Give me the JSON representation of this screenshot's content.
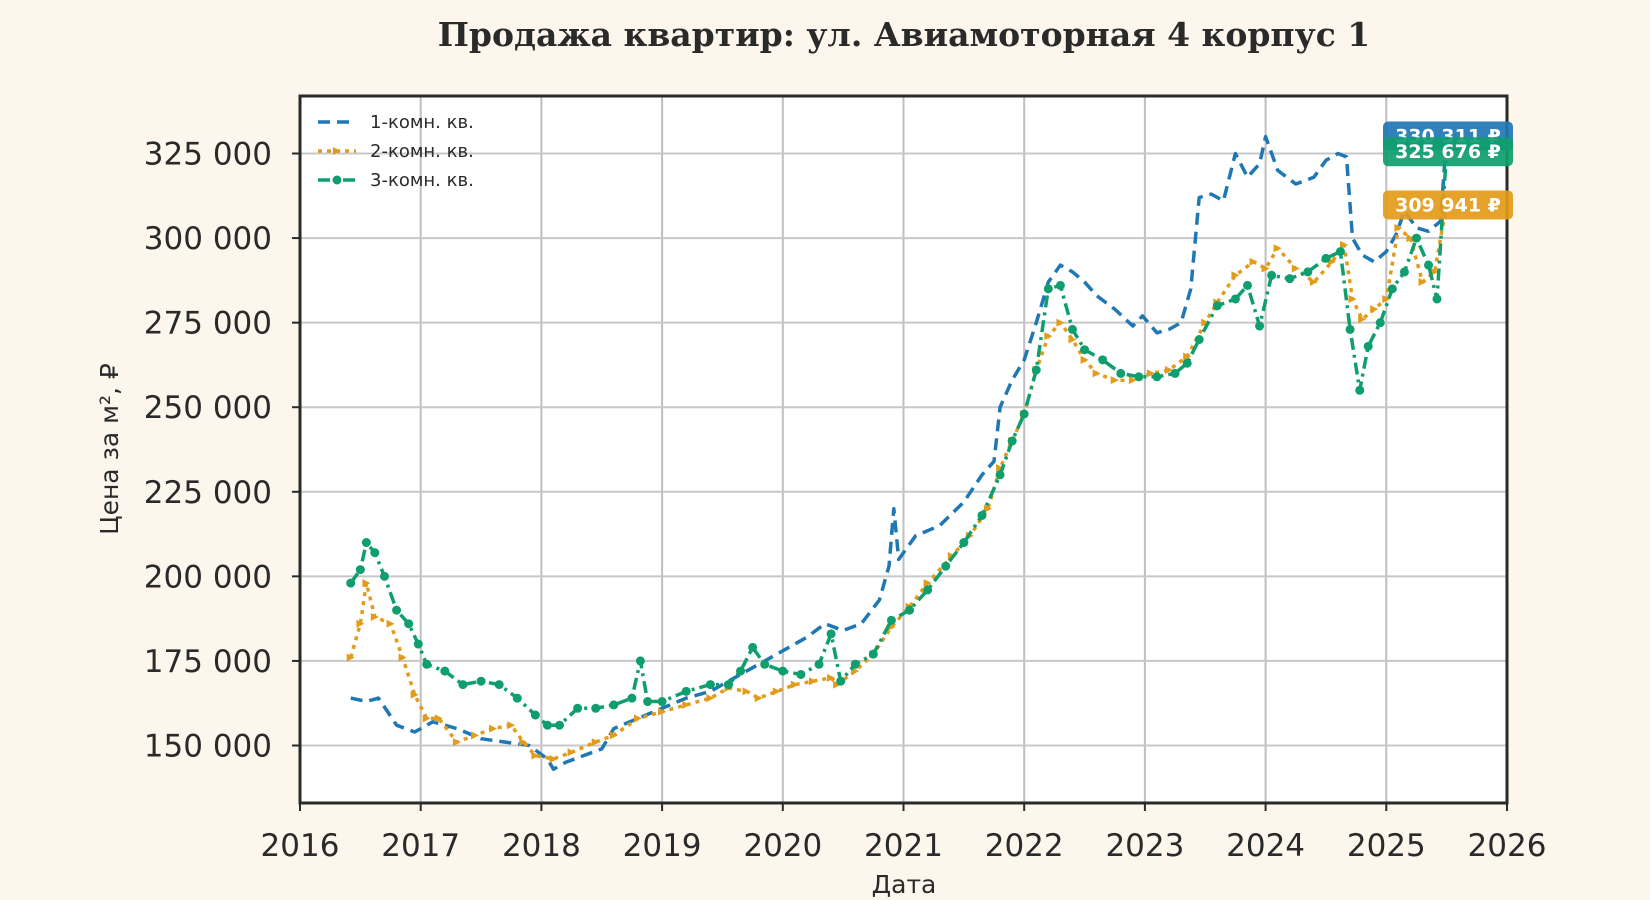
{
  "chart_data": {
    "type": "line",
    "title": "Продажа квартир: ул. Авиамоторная 4 корпус 1",
    "xlabel": "Дата",
    "ylabel": "Цена за м², ₽",
    "xlim": [
      2016,
      2026
    ],
    "ylim": [
      133000,
      342000
    ],
    "x_ticks": [
      "2016",
      "2017",
      "2018",
      "2019",
      "2020",
      "2021",
      "2022",
      "2023",
      "2024",
      "2025",
      "2026"
    ],
    "y_ticks": [
      {
        "value": 150000,
        "label": "150 000"
      },
      {
        "value": 175000,
        "label": "175 000"
      },
      {
        "value": 200000,
        "label": "200 000"
      },
      {
        "value": 225000,
        "label": "225 000"
      },
      {
        "value": 250000,
        "label": "250 000"
      },
      {
        "value": 275000,
        "label": "275 000"
      },
      {
        "value": 300000,
        "label": "300 000"
      },
      {
        "value": 325000,
        "label": "325 000"
      }
    ],
    "grid": true,
    "legend_position": "top-left",
    "series": [
      {
        "name": "1-комн. кв.",
        "color": "#1f77b4",
        "style": "dashed",
        "last_value_label": "330 311 ₽",
        "points": [
          [
            2016.42,
            164000
          ],
          [
            2016.55,
            163000
          ],
          [
            2016.65,
            164000
          ],
          [
            2016.8,
            156000
          ],
          [
            2016.95,
            154000
          ],
          [
            2017.1,
            157000
          ],
          [
            2017.3,
            155000
          ],
          [
            2017.5,
            152000
          ],
          [
            2017.7,
            151000
          ],
          [
            2017.9,
            150000
          ],
          [
            2018.05,
            146000
          ],
          [
            2018.1,
            143000
          ],
          [
            2018.2,
            145000
          ],
          [
            2018.35,
            147000
          ],
          [
            2018.5,
            149000
          ],
          [
            2018.6,
            155000
          ],
          [
            2018.8,
            158000
          ],
          [
            2019.0,
            161000
          ],
          [
            2019.2,
            164000
          ],
          [
            2019.4,
            166000
          ],
          [
            2019.6,
            170000
          ],
          [
            2019.8,
            174000
          ],
          [
            2020.0,
            178000
          ],
          [
            2020.2,
            182000
          ],
          [
            2020.35,
            186000
          ],
          [
            2020.5,
            184000
          ],
          [
            2020.65,
            186000
          ],
          [
            2020.8,
            193000
          ],
          [
            2020.88,
            203000
          ],
          [
            2020.92,
            220000
          ],
          [
            2020.96,
            205000
          ],
          [
            2021.1,
            212000
          ],
          [
            2021.3,
            215000
          ],
          [
            2021.5,
            222000
          ],
          [
            2021.65,
            230000
          ],
          [
            2021.75,
            234000
          ],
          [
            2021.8,
            250000
          ],
          [
            2021.9,
            258000
          ],
          [
            2022.0,
            264000
          ],
          [
            2022.1,
            275000
          ],
          [
            2022.2,
            287000
          ],
          [
            2022.3,
            292000
          ],
          [
            2022.4,
            290000
          ],
          [
            2022.5,
            287000
          ],
          [
            2022.6,
            283000
          ],
          [
            2022.75,
            279000
          ],
          [
            2022.9,
            274000
          ],
          [
            2022.98,
            277000
          ],
          [
            2023.1,
            272000
          ],
          [
            2023.2,
            273000
          ],
          [
            2023.3,
            275000
          ],
          [
            2023.38,
            285000
          ],
          [
            2023.45,
            312000
          ],
          [
            2023.55,
            313000
          ],
          [
            2023.65,
            311000
          ],
          [
            2023.75,
            325000
          ],
          [
            2023.85,
            318000
          ],
          [
            2023.95,
            322000
          ],
          [
            2024.0,
            330000
          ],
          [
            2024.1,
            320000
          ],
          [
            2024.25,
            316000
          ],
          [
            2024.4,
            318000
          ],
          [
            2024.5,
            323000
          ],
          [
            2024.6,
            325000
          ],
          [
            2024.67,
            324000
          ],
          [
            2024.72,
            300000
          ],
          [
            2024.8,
            295000
          ],
          [
            2024.9,
            293000
          ],
          [
            2025.0,
            296000
          ],
          [
            2025.08,
            301000
          ],
          [
            2025.15,
            308000
          ],
          [
            2025.25,
            303000
          ],
          [
            2025.35,
            302000
          ],
          [
            2025.45,
            305000
          ],
          [
            2025.5,
            330311
          ]
        ]
      },
      {
        "name": "2-комн. кв.",
        "color": "#e39b1a",
        "style": "dotted",
        "last_value_label": "309 941 ₽",
        "points": [
          [
            2016.42,
            176000
          ],
          [
            2016.5,
            186000
          ],
          [
            2016.55,
            198000
          ],
          [
            2016.62,
            188000
          ],
          [
            2016.75,
            186000
          ],
          [
            2016.85,
            176000
          ],
          [
            2016.95,
            165000
          ],
          [
            2017.05,
            158000
          ],
          [
            2017.15,
            158000
          ],
          [
            2017.3,
            151000
          ],
          [
            2017.45,
            153000
          ],
          [
            2017.6,
            155000
          ],
          [
            2017.75,
            156000
          ],
          [
            2017.85,
            151000
          ],
          [
            2017.95,
            147000
          ],
          [
            2018.1,
            146000
          ],
          [
            2018.25,
            148000
          ],
          [
            2018.45,
            151000
          ],
          [
            2018.6,
            153000
          ],
          [
            2018.8,
            158000
          ],
          [
            2019.0,
            160000
          ],
          [
            2019.2,
            162000
          ],
          [
            2019.4,
            164000
          ],
          [
            2019.55,
            167000
          ],
          [
            2019.7,
            166000
          ],
          [
            2019.8,
            164000
          ],
          [
            2019.95,
            166000
          ],
          [
            2020.1,
            168000
          ],
          [
            2020.25,
            169000
          ],
          [
            2020.4,
            170000
          ],
          [
            2020.45,
            168000
          ],
          [
            2020.6,
            172000
          ],
          [
            2020.75,
            177000
          ],
          [
            2020.9,
            185000
          ],
          [
            2021.05,
            191000
          ],
          [
            2021.2,
            198000
          ],
          [
            2021.4,
            206000
          ],
          [
            2021.55,
            212000
          ],
          [
            2021.7,
            220000
          ],
          [
            2021.8,
            232000
          ],
          [
            2021.9,
            240000
          ],
          [
            2022.0,
            248000
          ],
          [
            2022.1,
            261000
          ],
          [
            2022.2,
            271000
          ],
          [
            2022.3,
            275000
          ],
          [
            2022.4,
            270000
          ],
          [
            2022.5,
            264000
          ],
          [
            2022.6,
            260000
          ],
          [
            2022.75,
            258000
          ],
          [
            2022.9,
            258000
          ],
          [
            2023.05,
            260000
          ],
          [
            2023.2,
            261000
          ],
          [
            2023.35,
            265000
          ],
          [
            2023.5,
            275000
          ],
          [
            2023.6,
            281000
          ],
          [
            2023.75,
            289000
          ],
          [
            2023.9,
            293000
          ],
          [
            2024.0,
            291000
          ],
          [
            2024.1,
            297000
          ],
          [
            2024.25,
            291000
          ],
          [
            2024.4,
            287000
          ],
          [
            2024.55,
            293000
          ],
          [
            2024.65,
            298000
          ],
          [
            2024.72,
            282000
          ],
          [
            2024.8,
            276000
          ],
          [
            2024.9,
            279000
          ],
          [
            2025.0,
            282000
          ],
          [
            2025.1,
            303000
          ],
          [
            2025.2,
            300000
          ],
          [
            2025.3,
            287000
          ],
          [
            2025.4,
            290000
          ],
          [
            2025.5,
            309941
          ]
        ]
      },
      {
        "name": "3-комн. кв.",
        "color": "#0f9e6e",
        "style": "dashdot",
        "last_value_label": "325 676 ₽",
        "points": [
          [
            2016.42,
            198000
          ],
          [
            2016.5,
            202000
          ],
          [
            2016.55,
            210000
          ],
          [
            2016.62,
            207000
          ],
          [
            2016.7,
            200000
          ],
          [
            2016.8,
            190000
          ],
          [
            2016.9,
            186000
          ],
          [
            2016.98,
            180000
          ],
          [
            2017.05,
            174000
          ],
          [
            2017.2,
            172000
          ],
          [
            2017.35,
            168000
          ],
          [
            2017.5,
            169000
          ],
          [
            2017.65,
            168000
          ],
          [
            2017.8,
            164000
          ],
          [
            2017.95,
            159000
          ],
          [
            2018.05,
            156000
          ],
          [
            2018.15,
            156000
          ],
          [
            2018.3,
            161000
          ],
          [
            2018.45,
            161000
          ],
          [
            2018.6,
            162000
          ],
          [
            2018.75,
            164000
          ],
          [
            2018.82,
            175000
          ],
          [
            2018.88,
            163000
          ],
          [
            2019.0,
            163000
          ],
          [
            2019.2,
            166000
          ],
          [
            2019.4,
            168000
          ],
          [
            2019.55,
            168000
          ],
          [
            2019.65,
            172000
          ],
          [
            2019.75,
            179000
          ],
          [
            2019.85,
            174000
          ],
          [
            2020.0,
            172000
          ],
          [
            2020.15,
            171000
          ],
          [
            2020.3,
            174000
          ],
          [
            2020.4,
            183000
          ],
          [
            2020.48,
            169000
          ],
          [
            2020.6,
            174000
          ],
          [
            2020.75,
            177000
          ],
          [
            2020.9,
            187000
          ],
          [
            2021.05,
            190000
          ],
          [
            2021.2,
            196000
          ],
          [
            2021.35,
            203000
          ],
          [
            2021.5,
            210000
          ],
          [
            2021.65,
            218000
          ],
          [
            2021.8,
            230000
          ],
          [
            2021.9,
            240000
          ],
          [
            2022.0,
            248000
          ],
          [
            2022.1,
            261000
          ],
          [
            2022.2,
            285000
          ],
          [
            2022.3,
            286000
          ],
          [
            2022.4,
            273000
          ],
          [
            2022.5,
            267000
          ],
          [
            2022.65,
            264000
          ],
          [
            2022.8,
            260000
          ],
          [
            2022.95,
            259000
          ],
          [
            2023.1,
            259000
          ],
          [
            2023.25,
            260000
          ],
          [
            2023.35,
            263000
          ],
          [
            2023.45,
            270000
          ],
          [
            2023.6,
            280000
          ],
          [
            2023.75,
            282000
          ],
          [
            2023.85,
            286000
          ],
          [
            2023.95,
            274000
          ],
          [
            2024.05,
            289000
          ],
          [
            2024.2,
            288000
          ],
          [
            2024.35,
            290000
          ],
          [
            2024.5,
            294000
          ],
          [
            2024.62,
            296000
          ],
          [
            2024.7,
            273000
          ],
          [
            2024.78,
            255000
          ],
          [
            2024.85,
            268000
          ],
          [
            2024.95,
            275000
          ],
          [
            2025.05,
            285000
          ],
          [
            2025.15,
            290000
          ],
          [
            2025.25,
            300000
          ],
          [
            2025.35,
            292000
          ],
          [
            2025.42,
            282000
          ],
          [
            2025.5,
            325676
          ]
        ]
      }
    ]
  }
}
